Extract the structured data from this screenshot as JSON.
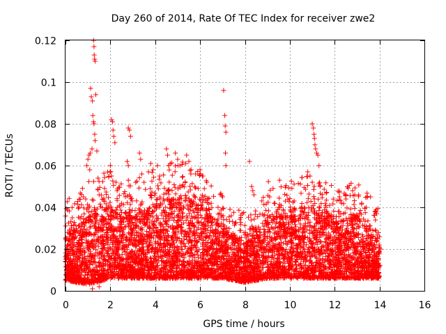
{
  "chart_data": {
    "type": "scatter",
    "title": "Day 260 of 2014, Rate Of TEC Index for receiver zwe2",
    "xlabel": "GPS time / hours",
    "ylabel": "ROTI / TECUs",
    "xlim": [
      0,
      16
    ],
    "ylim": [
      0,
      0.12
    ],
    "x_ticks": [
      "0",
      "2",
      "4",
      "6",
      "8",
      "10",
      "12",
      "14",
      "16"
    ],
    "y_ticks": [
      "0",
      "0.02",
      "0.04",
      "0.06",
      "0.08",
      "0.1",
      "0.12"
    ],
    "grid": true,
    "marker": "+",
    "marker_color": "#ff0000",
    "series": [
      {
        "name": "ROTI",
        "points": [
          [
            1.12,
            0.097
          ],
          [
            1.15,
            0.093
          ],
          [
            1.2,
            0.091
          ],
          [
            1.22,
            0.084
          ],
          [
            1.25,
            0.081
          ],
          [
            1.27,
            0.08
          ],
          [
            1.3,
            0.075
          ],
          [
            1.32,
            0.072
          ],
          [
            1.18,
            0.068
          ],
          [
            1.1,
            0.066
          ],
          [
            1.05,
            0.065
          ],
          [
            1.0,
            0.063
          ],
          [
            0.95,
            0.06
          ],
          [
            1.08,
            0.058
          ],
          [
            1.25,
            0.12
          ],
          [
            1.27,
            0.117
          ],
          [
            1.28,
            0.113
          ],
          [
            1.3,
            0.111
          ],
          [
            1.32,
            0.11
          ],
          [
            1.35,
            0.094
          ],
          [
            1.4,
            0.067
          ],
          [
            1.45,
            0.054
          ],
          [
            1.5,
            0.046
          ],
          [
            2.05,
            0.082
          ],
          [
            2.1,
            0.081
          ],
          [
            2.12,
            0.077
          ],
          [
            2.15,
            0.074
          ],
          [
            2.2,
            0.071
          ],
          [
            2.0,
            0.06
          ],
          [
            2.05,
            0.055
          ],
          [
            2.25,
            0.052
          ],
          [
            2.3,
            0.048
          ],
          [
            2.8,
            0.078
          ],
          [
            2.85,
            0.077
          ],
          [
            2.9,
            0.074
          ],
          [
            2.75,
            0.062
          ],
          [
            2.8,
            0.06
          ],
          [
            2.85,
            0.046
          ],
          [
            2.9,
            0.045
          ],
          [
            3.3,
            0.066
          ],
          [
            3.35,
            0.063
          ],
          [
            3.4,
            0.056
          ],
          [
            3.5,
            0.052
          ],
          [
            3.7,
            0.057
          ],
          [
            3.8,
            0.061
          ],
          [
            3.9,
            0.058
          ],
          [
            4.1,
            0.06
          ],
          [
            4.5,
            0.068
          ],
          [
            4.55,
            0.065
          ],
          [
            4.6,
            0.06
          ],
          [
            4.2,
            0.055
          ],
          [
            4.9,
            0.066
          ],
          [
            5.0,
            0.063
          ],
          [
            5.1,
            0.06
          ],
          [
            5.4,
            0.065
          ],
          [
            5.5,
            0.062
          ],
          [
            5.6,
            0.058
          ],
          [
            5.8,
            0.056
          ],
          [
            6.0,
            0.058
          ],
          [
            6.1,
            0.055
          ],
          [
            6.3,
            0.052
          ],
          [
            7.05,
            0.096
          ],
          [
            7.1,
            0.084
          ],
          [
            7.12,
            0.079
          ],
          [
            7.15,
            0.076
          ],
          [
            7.13,
            0.066
          ],
          [
            7.15,
            0.06
          ],
          [
            7.0,
            0.045
          ],
          [
            6.8,
            0.04
          ],
          [
            8.2,
            0.062
          ],
          [
            8.3,
            0.05
          ],
          [
            8.35,
            0.048
          ],
          [
            8.4,
            0.046
          ],
          [
            9.1,
            0.045
          ],
          [
            9.3,
            0.042
          ],
          [
            9.5,
            0.04
          ],
          [
            9.8,
            0.043
          ],
          [
            10.8,
            0.057
          ],
          [
            10.9,
            0.055
          ],
          [
            11.0,
            0.08
          ],
          [
            11.05,
            0.078
          ],
          [
            11.08,
            0.075
          ],
          [
            11.1,
            0.073
          ],
          [
            11.12,
            0.07
          ],
          [
            11.15,
            0.068
          ],
          [
            11.2,
            0.066
          ],
          [
            11.25,
            0.065
          ],
          [
            11.3,
            0.06
          ],
          [
            11.0,
            0.052
          ],
          [
            11.35,
            0.05
          ],
          [
            12.3,
            0.042
          ],
          [
            12.5,
            0.044
          ],
          [
            12.8,
            0.048
          ],
          [
            12.9,
            0.046
          ],
          [
            13.2,
            0.042
          ],
          [
            13.4,
            0.04
          ],
          [
            13.6,
            0.045
          ],
          [
            13.8,
            0.038
          ],
          [
            14.0,
            0.026
          ],
          [
            14.05,
            0.02
          ],
          [
            14.02,
            0.012
          ],
          [
            1.2,
            0.001
          ],
          [
            1.5,
            0.002
          ],
          [
            0.1,
            0.028
          ],
          [
            0.3,
            0.035
          ],
          [
            0.6,
            0.04
          ],
          [
            0.8,
            0.045
          ],
          [
            0.9,
            0.044
          ]
        ],
        "density_profile": {
          "description": "dense band of markers; upper envelope of the band by hour",
          "hours": [
            0,
            1,
            2,
            3,
            4,
            5,
            6,
            7,
            8,
            9,
            10,
            11,
            12,
            13,
            14
          ],
          "band_upper": [
            0.025,
            0.035,
            0.04,
            0.035,
            0.04,
            0.045,
            0.04,
            0.03,
            0.022,
            0.035,
            0.035,
            0.038,
            0.032,
            0.035,
            0.022
          ],
          "band_lower": [
            0.005,
            0.003,
            0.006,
            0.006,
            0.006,
            0.006,
            0.006,
            0.006,
            0.004,
            0.006,
            0.006,
            0.006,
            0.006,
            0.006,
            0.006
          ]
        }
      }
    ]
  }
}
